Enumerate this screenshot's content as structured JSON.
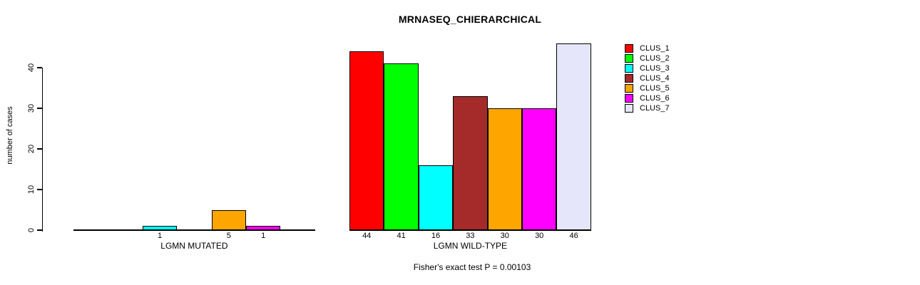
{
  "chart_data": {
    "type": "bar",
    "title": "MRNASEQ_CHIERARCHICAL",
    "ylabel": "number of cases",
    "footnote": "Fisher's exact test P = 0.00103",
    "yticks": [
      0,
      10,
      20,
      30,
      40
    ],
    "ylim": [
      0,
      46
    ],
    "grid": false,
    "legend_position": "right",
    "legend": [
      "CLUS_1",
      "CLUS_2",
      "CLUS_3",
      "CLUS_4",
      "CLUS_5",
      "CLUS_6",
      "CLUS_7"
    ],
    "colors": [
      "#FF0000",
      "#00FF00",
      "#00FFFF",
      "#A52A2A",
      "#FFA500",
      "#FF00FF",
      "#E6E6FA"
    ],
    "groups": [
      {
        "label": "LGMN MUTATED",
        "values": [
          0,
          0,
          1,
          0,
          5,
          1,
          0
        ]
      },
      {
        "label": "LGMN WILD-TYPE",
        "values": [
          44,
          41,
          16,
          33,
          30,
          30,
          46
        ]
      }
    ],
    "bar_value_label_rule": "value printed under each bar; zero-value bars hidden and unlabeled"
  }
}
